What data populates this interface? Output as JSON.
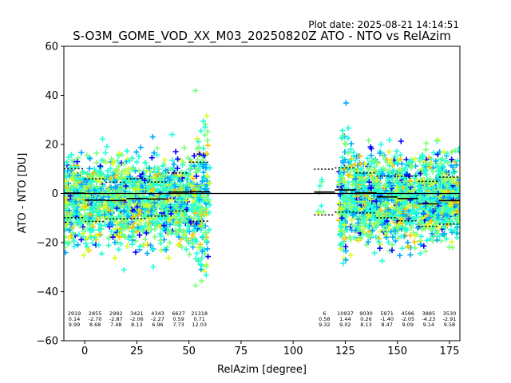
{
  "plot_date": "Plot date: 2025-08-21 14:14:51",
  "chart_data": {
    "type": "scatter",
    "title": "S-O3M_GOME_VOD_XX_M03_20250820Z ATO - NTO vs RelAzim",
    "xlabel": "RelAzim [degree]",
    "ylabel": "ATO - NTO [DU]",
    "xlim": [
      -10,
      180
    ],
    "ylim": [
      -60,
      60
    ],
    "xticks": [
      0,
      25,
      50,
      75,
      100,
      125,
      150,
      175
    ],
    "yticks": [
      -60,
      -40,
      -20,
      0,
      20,
      40,
      60
    ],
    "xtick_labels": [
      "0",
      "25",
      "50",
      "75",
      "100",
      "125",
      "150",
      "175"
    ],
    "ytick_labels": [
      "−60",
      "−40",
      "−20",
      "0",
      "20",
      "40",
      "60"
    ],
    "grid": false,
    "zero_line": 0,
    "marker": "+",
    "colormap": [
      "#0000ff",
      "#00a8ff",
      "#20ffd8",
      "#7cff7a",
      "#d8ff20",
      "#ffc000"
    ],
    "scatter_clusters": [
      {
        "x_range": [
          -10,
          60
        ],
        "y_mean": -3,
        "y_spread": 12
      },
      {
        "x_range": [
          112,
          115
        ],
        "y_mean": 0,
        "y_spread": 6
      },
      {
        "x_range": [
          122,
          180
        ],
        "y_mean": -2,
        "y_spread": 12
      }
    ],
    "bins": [
      {
        "x_start": -10,
        "x_end": 0,
        "mean": 0.14,
        "sd": 9.99,
        "count": 2919,
        "label_x": -5,
        "count_label": "2919",
        "mean_label": "0.14",
        "sd_label": "9.99"
      },
      {
        "x_start": 0,
        "x_end": 10,
        "mean": -2.7,
        "sd": 8.68,
        "count": 2855,
        "label_x": 5,
        "count_label": "2855",
        "mean_label": "-2.70",
        "sd_label": "8.68"
      },
      {
        "x_start": 10,
        "x_end": 20,
        "mean": -2.87,
        "sd": 7.48,
        "count": 2992,
        "label_x": 15,
        "count_label": "2992",
        "mean_label": "-2.87",
        "sd_label": "7.48"
      },
      {
        "x_start": 20,
        "x_end": 30,
        "mean": -2.06,
        "sd": 8.13,
        "count": 3421,
        "label_x": 25,
        "count_label": "3421",
        "mean_label": "-2.06",
        "sd_label": "8.13"
      },
      {
        "x_start": 30,
        "x_end": 40,
        "mean": -2.27,
        "sd": 6.96,
        "count": 4343,
        "label_x": 35,
        "count_label": "4343",
        "mean_label": "-2.27",
        "sd_label": "6.96"
      },
      {
        "x_start": 40,
        "x_end": 50,
        "mean": 0.59,
        "sd": 7.73,
        "count": 6627,
        "label_x": 45,
        "count_label": "6627",
        "mean_label": "0.59",
        "sd_label": "7.73"
      },
      {
        "x_start": 50,
        "x_end": 60,
        "mean": 0.71,
        "sd": 12.03,
        "count": 21318,
        "label_x": 55,
        "count_label": "21318",
        "mean_label": "0.71",
        "sd_label": "12.03"
      },
      {
        "x_start": 110,
        "x_end": 120,
        "mean": 0.58,
        "sd": 9.32,
        "count": 6,
        "label_x": 115,
        "count_label": "6",
        "mean_label": "0.58",
        "sd_label": "9.32"
      },
      {
        "x_start": 120,
        "x_end": 130,
        "mean": 1.44,
        "sd": 9.02,
        "count": 10937,
        "label_x": 125,
        "count_label": "10937",
        "mean_label": "1.44",
        "sd_label": "9.02"
      },
      {
        "x_start": 130,
        "x_end": 140,
        "mean": 0.26,
        "sd": 8.13,
        "count": 9030,
        "label_x": 135,
        "count_label": "9030",
        "mean_label": "0.26",
        "sd_label": "8.13"
      },
      {
        "x_start": 140,
        "x_end": 150,
        "mean": -1.4,
        "sd": 8.47,
        "count": 5971,
        "label_x": 145,
        "count_label": "5971",
        "mean_label": "-1.40",
        "sd_label": "8.47"
      },
      {
        "x_start": 150,
        "x_end": 160,
        "mean": -2.05,
        "sd": 9.09,
        "count": 4596,
        "label_x": 155,
        "count_label": "4596",
        "mean_label": "-2.05",
        "sd_label": "9.09"
      },
      {
        "x_start": 160,
        "x_end": 170,
        "mean": -4.23,
        "sd": 9.14,
        "count": 3885,
        "label_x": 165,
        "count_label": "3885",
        "mean_label": "-4.23",
        "sd_label": "9.14"
      },
      {
        "x_start": 170,
        "x_end": 180,
        "mean": -2.91,
        "sd": 9.58,
        "count": 3530,
        "label_x": 175,
        "count_label": "3530",
        "mean_label": "-2.91",
        "sd_label": "9.58"
      }
    ]
  }
}
